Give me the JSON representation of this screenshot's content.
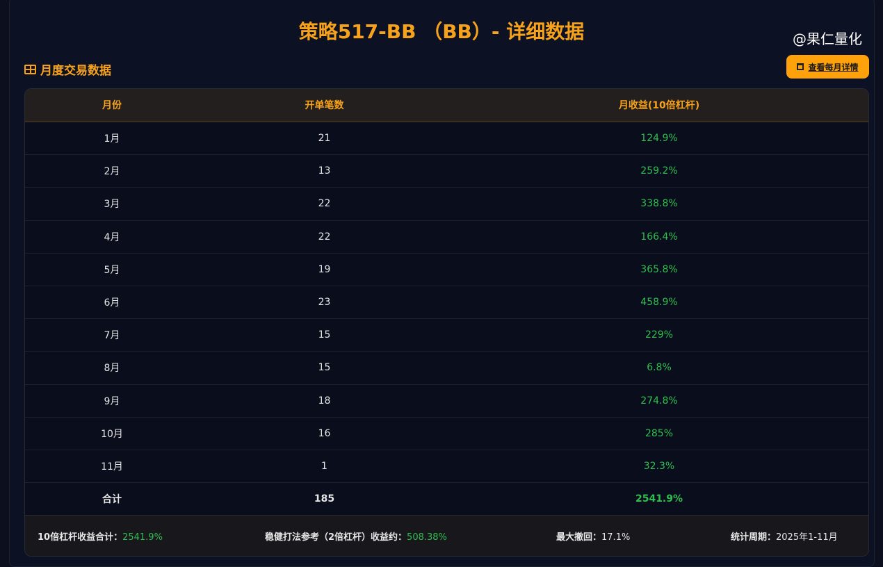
{
  "title": "策略517-BB （BB）- 详细数据",
  "section_title": "月度交易数据",
  "detail_button": "查看每月详情",
  "columns": [
    "月份",
    "开单笔数",
    "月收益(10倍杠杆)"
  ],
  "rows": [
    [
      "1月",
      "21",
      "124.9%"
    ],
    [
      "2月",
      "13",
      "259.2%"
    ],
    [
      "3月",
      "22",
      "338.8%"
    ],
    [
      "4月",
      "22",
      "166.4%"
    ],
    [
      "5月",
      "19",
      "365.8%"
    ],
    [
      "6月",
      "23",
      "458.9%"
    ],
    [
      "7月",
      "15",
      "229%"
    ],
    [
      "8月",
      "15",
      "6.8%"
    ],
    [
      "9月",
      "18",
      "274.8%"
    ],
    [
      "10月",
      "16",
      "285%"
    ],
    [
      "11月",
      "1",
      "32.3%"
    ]
  ],
  "total": [
    "合计",
    "185",
    "2541.9%"
  ],
  "footer": {
    "sum_label": "10倍杠杆收益合计：",
    "sum_value": "2541.9%",
    "safe_label": "稳健打法参考（2倍杠杆）收益约：",
    "safe_value": "508.38%",
    "dd_label": "最大撤回：",
    "dd_value": "17.1%",
    "period_label": "统计周期：",
    "period_value": "2025年1-11月"
  },
  "watermark": "@果仁量化",
  "colors": {
    "accent": "#f7a21b",
    "positive": "#2fbf4f",
    "button": "#ffa10a"
  }
}
